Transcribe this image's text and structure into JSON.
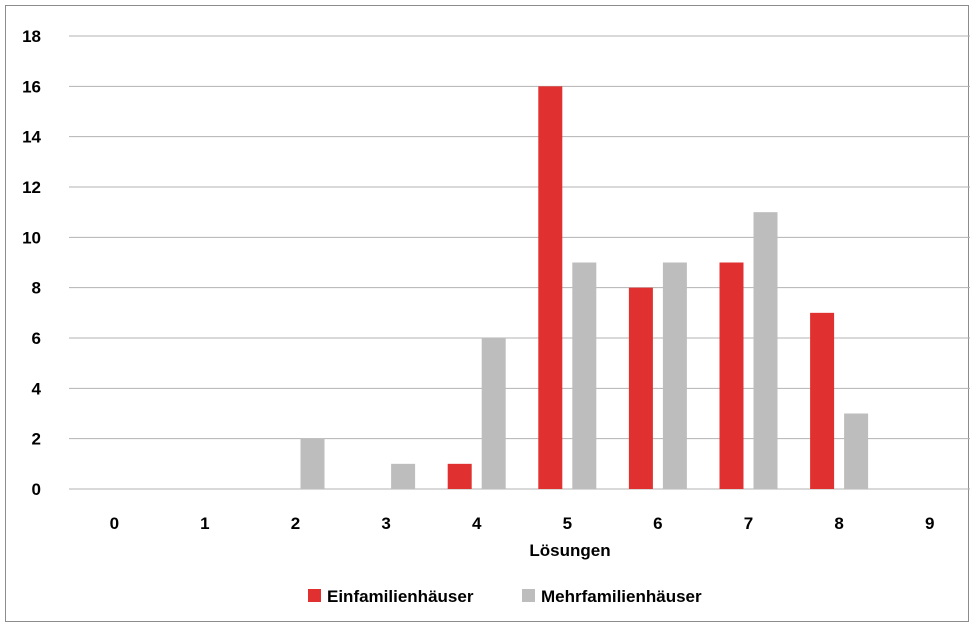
{
  "chart_data": {
    "type": "bar",
    "xlabel": "Lösungen",
    "ylabel": "",
    "ylim": [
      0,
      18
    ],
    "yticks": [
      0,
      2,
      4,
      6,
      8,
      10,
      12,
      14,
      16,
      18
    ],
    "categories": [
      "0",
      "1",
      "2",
      "3",
      "4",
      "5",
      "6",
      "7",
      "8",
      "9"
    ],
    "series": [
      {
        "name": "Einfamilienhäuser",
        "color": "#e03030",
        "values": [
          0,
          0,
          0,
          0,
          1,
          16,
          8,
          9,
          7,
          0
        ]
      },
      {
        "name": "Mehrfamilienhäuser",
        "color": "#bdbdbd",
        "values": [
          0,
          0,
          2,
          1,
          6,
          9,
          9,
          11,
          3,
          0
        ]
      }
    ],
    "grid": true,
    "legend": "bottom-center"
  }
}
